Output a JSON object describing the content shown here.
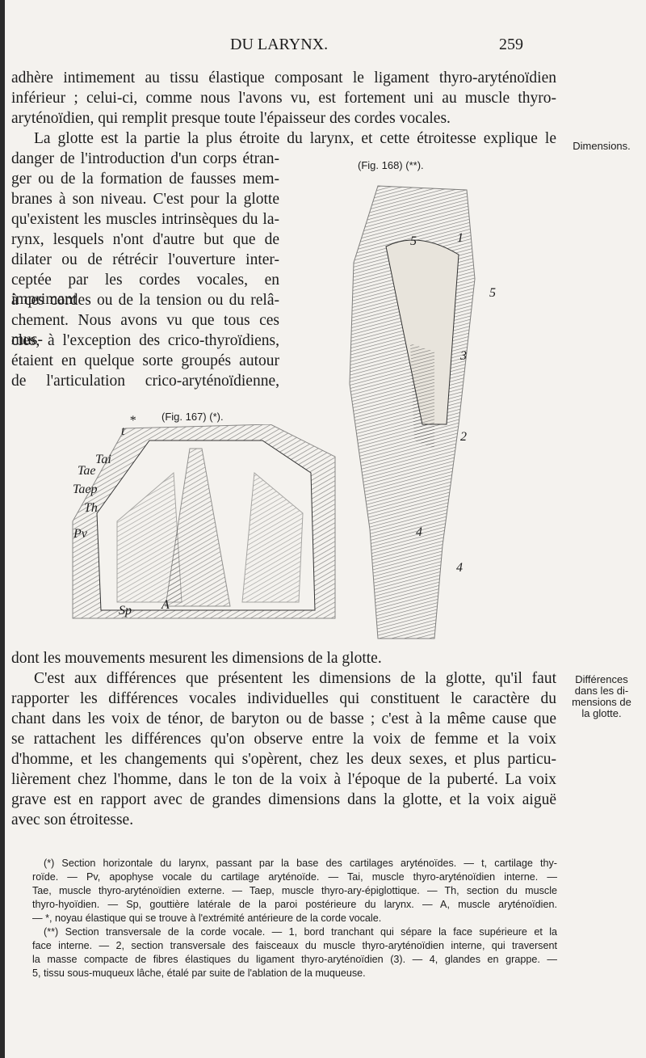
{
  "header": {
    "running_title": "DU LARYNX.",
    "page_number": "259"
  },
  "body_top": [
    "adhère intimement au tissu élastique composant le ligament thyro-aryténoïdien",
    "inférieur ; celui-ci, comme nous l'avons vu, est fortement uni au muscle thyro-",
    "aryténoïdien, qui remplit presque toute l'épaisseur des cordes vocales.",
    "La glotte est la partie la plus étroite du larynx, et cette étroitesse explique le",
    "danger de l'introduction d'un corps étran-",
    "ger ou de la formation de fausses mem-",
    "branes à son niveau. C'est pour la glotte",
    "qu'existent les muscles intrinsèques du la-",
    "rynx, lesquels n'ont d'autre but que de",
    "dilater ou de rétrécir l'ouverture inter-",
    "ceptée par les cordes vocales, en imprimant",
    "à ces cordes ou de la tension ou du relâ-",
    "chement. Nous avons vu que tous ces mus-",
    "cles, à l'exception des crico-thyroïdiens,",
    "étaient en quelque sorte groupés autour",
    "de l'articulation crico-aryténoïdienne,"
  ],
  "body_bottom": [
    "dont les mouvements mesurent les dimensions de la glotte.",
    "C'est aux différences que présentent les dimensions de la glotte, qu'il faut",
    "rapporter les différences vocales individuelles qui constituent le caractère du",
    "chant dans les voix de ténor, de baryton ou de basse ; c'est à la même cause que",
    "se rattachent les différences qu'on observe entre la voix de femme et la voix",
    "d'homme, et les changements qui s'opèrent, chez les deux sexes, et plus particu-",
    "lièrement chez l'homme, dans le ton de la voix à l'époque de la puberté. La voix",
    "grave est en rapport avec de grandes dimensions dans la glotte, et la voix aiguë",
    "avec son étroitesse."
  ],
  "margin_notes": [
    {
      "lines": [
        "Dimensions."
      ]
    },
    {
      "lines": [
        "Différences",
        "dans les di-",
        "mensions de",
        "la glotte."
      ]
    }
  ],
  "figures": [
    {
      "caption": "(Fig. 167) (*).",
      "labels": [
        "t",
        "*",
        "Tai",
        "Tae",
        "Taep",
        "Th",
        "Pv",
        "Sp",
        "A"
      ]
    },
    {
      "caption": "(Fig. 168) (**).",
      "labels": [
        "5",
        "1",
        "5",
        "3",
        "2",
        "4",
        "4"
      ]
    }
  ],
  "footnotes": [
    "(*) Section horizontale du larynx, passant par la base des cartilages aryténoïdes. — t, cartilage thy-",
    "roïde. — Pv, apophyse vocale du cartilage aryténoïde. — Tai, muscle thyro-aryténoïdien interne. —",
    "Tae, muscle thyro-aryténoïdien externe. — Taep, muscle thyro-ary-épiglottique. — Th, section du muscle",
    "thyro-hyoïdien. — Sp, gouttière latérale de la paroi postérieure du larynx. — A, muscle aryténoïdien.",
    "— *, noyau élastique qui se trouve à l'extrémité antérieure de la corde vocale.",
    "(**) Section transversale de la corde vocale. — 1, bord tranchant qui sépare la face supérieure et la",
    "face interne. — 2, section transversale des faisceaux du muscle thyro-aryténoïdien interne, qui traversent",
    "la masse compacte de fibres élastiques du ligament thyro-aryténoïdien (3). — 4, glandes en grappe. —",
    "5, tissu sous-muqueux lâche, étalé par suite de l'ablation de la muqueuse."
  ]
}
